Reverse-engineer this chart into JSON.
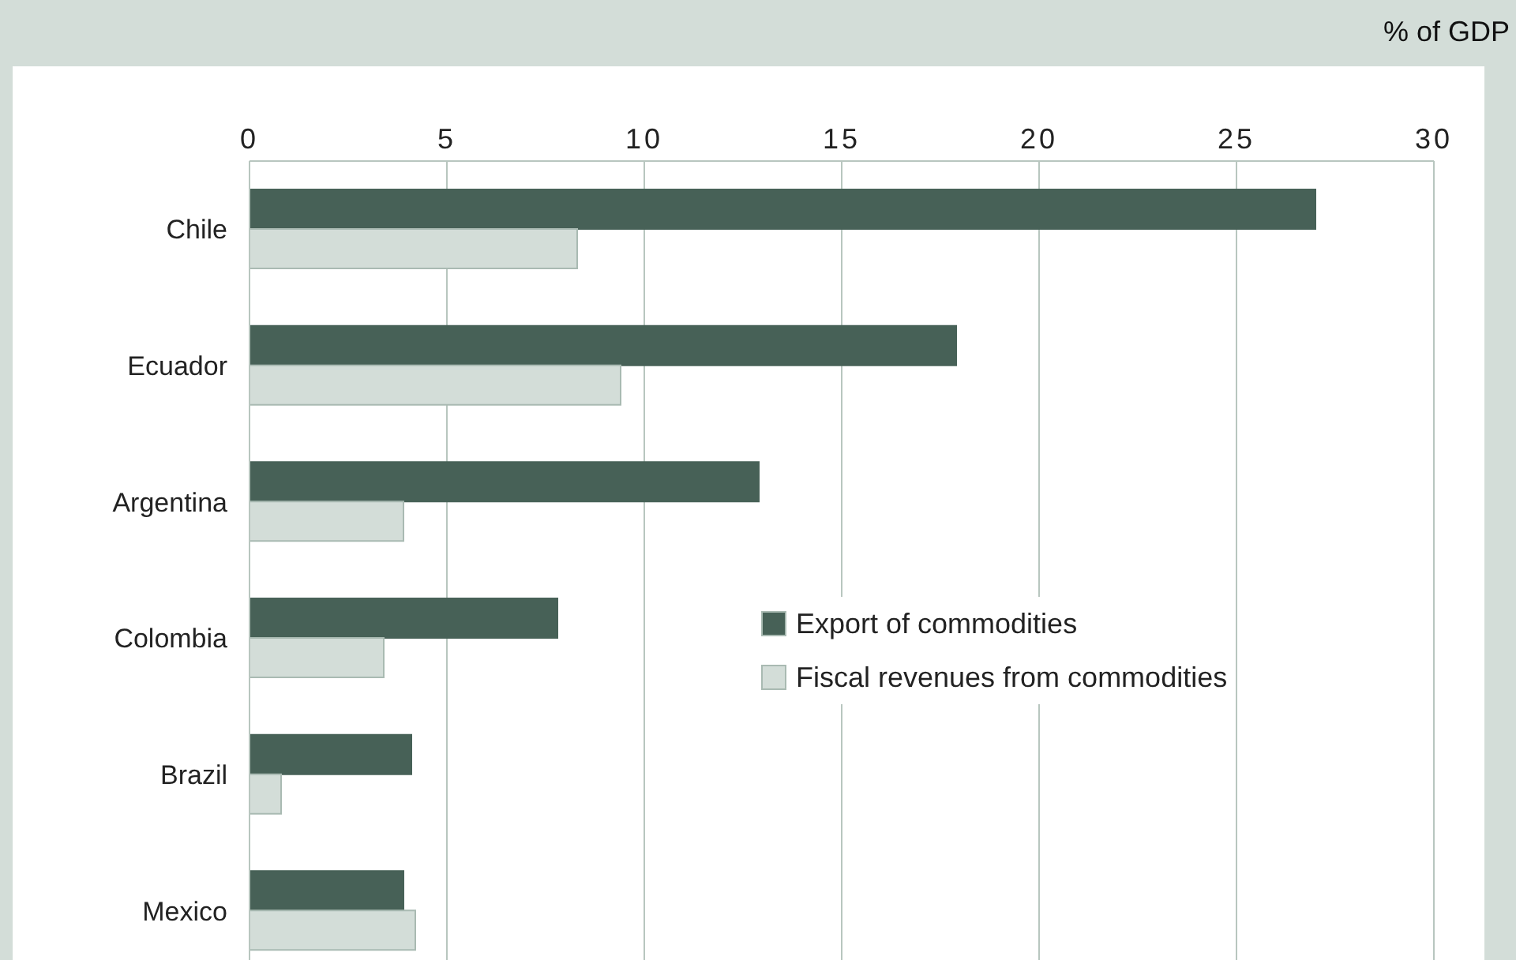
{
  "chart_data": {
    "type": "bar",
    "orientation": "horizontal",
    "xlabel": "% of GDP",
    "categories": [
      "Chile",
      "Ecuador",
      "Argentina",
      "Colombia",
      "Brazil",
      "Mexico"
    ],
    "series": [
      {
        "name": "Export of commodities",
        "color": "#476157",
        "values": [
          27.0,
          17.9,
          12.9,
          7.8,
          4.1,
          3.9
        ]
      },
      {
        "name": "Fiscal revenues from commodities",
        "color": "#d3ddd8",
        "values": [
          8.3,
          9.4,
          3.9,
          3.4,
          0.8,
          4.2
        ]
      }
    ],
    "xlim": [
      0,
      30
    ],
    "xticks": [
      0,
      5,
      10,
      15,
      20,
      25,
      30
    ],
    "grid": "x",
    "legend": "bottom right"
  }
}
